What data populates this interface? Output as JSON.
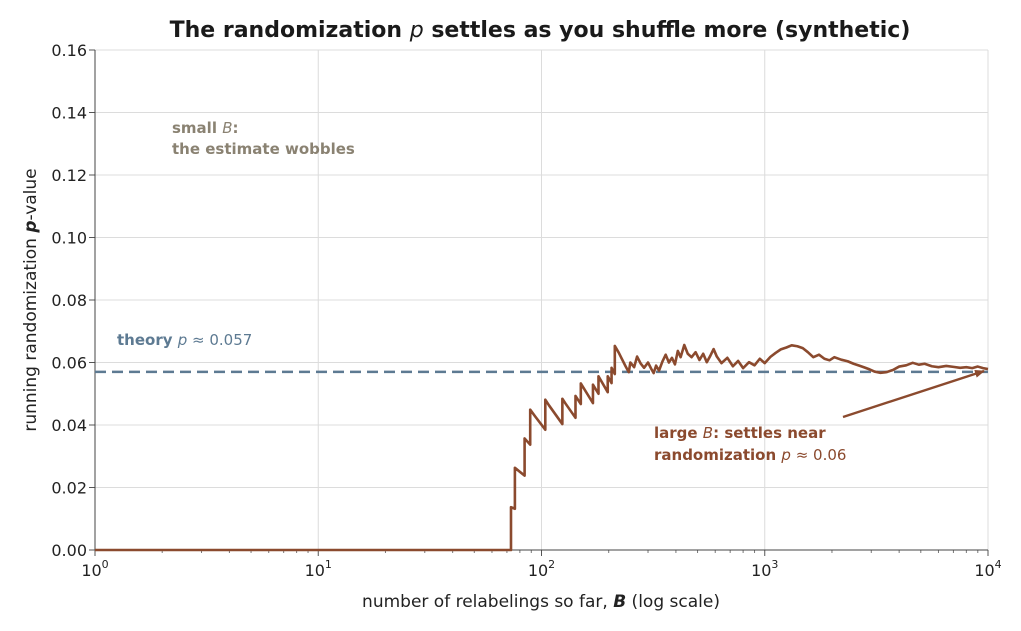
{
  "chart_data": {
    "type": "line",
    "title_main": "The randomization ",
    "title_p": "p",
    "title_rest": " settles as you shuffle more (synthetic)",
    "xlabel_pre": "number of relabelings so far, ",
    "xlabel_var": "B",
    "xlabel_post": " (log scale)",
    "ylabel_pre": "running randomization ",
    "ylabel_var": "p",
    "ylabel_post": "-value",
    "x_scale": "log",
    "xlim": [
      1,
      10000
    ],
    "ylim": [
      0,
      0.16
    ],
    "grid": true,
    "y_ticks": [
      0.0,
      0.02,
      0.04,
      0.06,
      0.08,
      0.1,
      0.12,
      0.14,
      0.16
    ],
    "y_tick_labels": [
      "0.00",
      "0.02",
      "0.04",
      "0.06",
      "0.08",
      "0.10",
      "0.12",
      "0.14",
      "0.16"
    ],
    "x_ticks": [
      1,
      10,
      100,
      1000,
      10000
    ],
    "x_tick_base": "10",
    "x_tick_exponents": [
      "0",
      "1",
      "2",
      "3",
      "4"
    ],
    "colors": {
      "running": "#8b4a2e",
      "theory": "#5d7a92",
      "small_note": "#8a8272"
    },
    "theory": {
      "value": 0.057,
      "label_bold": "theory ",
      "label_var": "p",
      "label_rest": " ≈ 0.057"
    },
    "annotations": {
      "small": {
        "line1_pre": "small ",
        "line1_var": "B",
        "line1_post": ":",
        "line2": "the estimate wobbles"
      },
      "large": {
        "line1_pre": "large ",
        "line1_var": "B",
        "line1_post": ": settles near",
        "line2_pre": "randomization ",
        "line2_var": "p",
        "line2_post": " ≈ 0.06"
      }
    },
    "series": [
      {
        "points": [
          [
            1,
            0
          ],
          [
            73,
            0
          ],
          [
            73,
            0.0137
          ],
          [
            76,
            0.0132
          ],
          [
            76,
            0.0263
          ],
          [
            84,
            0.0238
          ],
          [
            84,
            0.0357
          ],
          [
            89,
            0.0337
          ],
          [
            89,
            0.0449
          ],
          [
            94,
            0.0426
          ],
          [
            94,
            0.0426
          ],
          [
            104,
            0.0385
          ],
          [
            104,
            0.0481
          ],
          [
            108,
            0.0463
          ],
          [
            108,
            0.0463
          ],
          [
            124,
            0.0403
          ],
          [
            124,
            0.0484
          ],
          [
            128,
            0.0469
          ],
          [
            128,
            0.0469
          ],
          [
            142,
            0.0423
          ],
          [
            142,
            0.0493
          ],
          [
            150,
            0.0467
          ],
          [
            150,
            0.0533
          ],
          [
            170,
            0.047
          ],
          [
            170,
            0.0529
          ],
          [
            180,
            0.05
          ],
          [
            180,
            0.0556
          ],
          [
            198,
            0.0505
          ],
          [
            198,
            0.0556
          ],
          [
            206,
            0.0534
          ],
          [
            206,
            0.0583
          ],
          [
            213,
            0.0563
          ],
          [
            213,
            0.0653
          ],
          [
            222,
            0.0631
          ],
          [
            230,
            0.0609
          ],
          [
            238,
            0.0588
          ],
          [
            246,
            0.0569
          ],
          [
            250,
            0.06
          ],
          [
            260,
            0.0585
          ],
          [
            268,
            0.0619
          ],
          [
            278,
            0.0597
          ],
          [
            288,
            0.0583
          ],
          [
            300,
            0.06
          ],
          [
            310,
            0.058
          ],
          [
            318,
            0.0566
          ],
          [
            326,
            0.059
          ],
          [
            336,
            0.0574
          ],
          [
            348,
            0.0603
          ],
          [
            360,
            0.0625
          ],
          [
            372,
            0.06
          ],
          [
            384,
            0.0615
          ],
          [
            396,
            0.0594
          ],
          [
            408,
            0.0637
          ],
          [
            420,
            0.0617
          ],
          [
            436,
            0.0656
          ],
          [
            452,
            0.0628
          ],
          [
            470,
            0.0617
          ],
          [
            490,
            0.0633
          ],
          [
            510,
            0.0608
          ],
          [
            530,
            0.0628
          ],
          [
            550,
            0.0601
          ],
          [
            570,
            0.0621
          ],
          [
            590,
            0.0643
          ],
          [
            610,
            0.0619
          ],
          [
            640,
            0.0598
          ],
          [
            680,
            0.0615
          ],
          [
            720,
            0.0588
          ],
          [
            760,
            0.0605
          ],
          [
            800,
            0.0582
          ],
          [
            850,
            0.0601
          ],
          [
            900,
            0.0591
          ],
          [
            950,
            0.0612
          ],
          [
            1000,
            0.0598
          ],
          [
            1060,
            0.0618
          ],
          [
            1120,
            0.0631
          ],
          [
            1180,
            0.0642
          ],
          [
            1250,
            0.0648
          ],
          [
            1320,
            0.0655
          ],
          [
            1400,
            0.0652
          ],
          [
            1480,
            0.0646
          ],
          [
            1560,
            0.0633
          ],
          [
            1650,
            0.0617
          ],
          [
            1750,
            0.0625
          ],
          [
            1850,
            0.0612
          ],
          [
            1950,
            0.0607
          ],
          [
            2050,
            0.0617
          ],
          [
            2200,
            0.0609
          ],
          [
            2350,
            0.0604
          ],
          [
            2500,
            0.0596
          ],
          [
            2650,
            0.059
          ],
          [
            2800,
            0.0584
          ],
          [
            2950,
            0.0578
          ],
          [
            3100,
            0.0571
          ],
          [
            3300,
            0.0567
          ],
          [
            3500,
            0.0569
          ],
          [
            3750,
            0.0576
          ],
          [
            4000,
            0.0587
          ],
          [
            4300,
            0.0591
          ],
          [
            4600,
            0.0599
          ],
          [
            4900,
            0.0593
          ],
          [
            5200,
            0.0596
          ],
          [
            5600,
            0.0588
          ],
          [
            6000,
            0.0585
          ],
          [
            6500,
            0.0589
          ],
          [
            7000,
            0.0586
          ],
          [
            7500,
            0.0583
          ],
          [
            8000,
            0.0585
          ],
          [
            8500,
            0.0582
          ],
          [
            9000,
            0.0587
          ],
          [
            9500,
            0.0582
          ],
          [
            10000,
            0.0579
          ]
        ]
      }
    ]
  }
}
